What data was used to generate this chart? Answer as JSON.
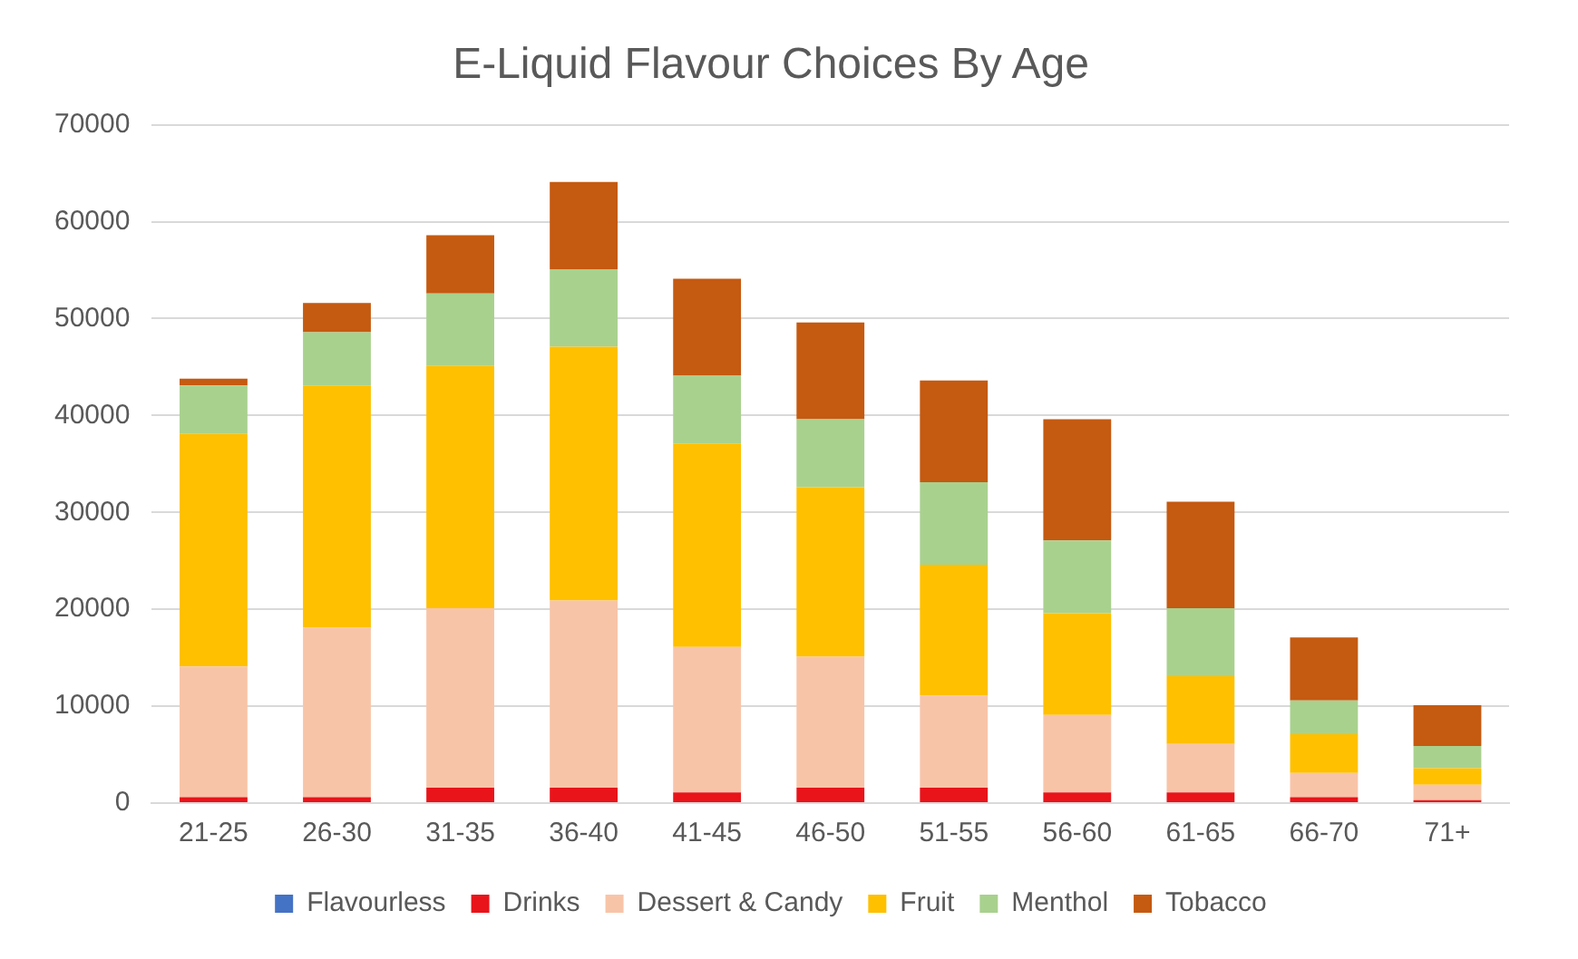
{
  "chart_data": {
    "type": "bar",
    "stacked": true,
    "title": "E-Liquid Flavour Choices By Age",
    "categories": [
      "21-25",
      "26-30",
      "31-35",
      "36-40",
      "41-45",
      "46-50",
      "51-55",
      "56-60",
      "61-65",
      "66-70",
      "71+"
    ],
    "series": [
      {
        "name": "Flavourless",
        "color": "#4472c4",
        "values": [
          100,
          100,
          100,
          100,
          100,
          100,
          100,
          100,
          100,
          100,
          100
        ]
      },
      {
        "name": "Drinks",
        "color": "#e8141a",
        "values": [
          500,
          500,
          1500,
          1500,
          1000,
          1500,
          1500,
          1000,
          1000,
          500,
          200
        ]
      },
      {
        "name": "Dessert & Candy",
        "color": "#f8c4a8",
        "values": [
          13500,
          17500,
          18500,
          19300,
          15000,
          13500,
          9500,
          8000,
          5000,
          2500,
          1600
        ]
      },
      {
        "name": "Fruit",
        "color": "#ffc000",
        "values": [
          24000,
          25000,
          25000,
          26200,
          21000,
          17500,
          13500,
          10500,
          7000,
          4000,
          1700
        ]
      },
      {
        "name": "Menthol",
        "color": "#a9d18e",
        "values": [
          5000,
          5500,
          7500,
          8000,
          7000,
          7000,
          8500,
          7500,
          7000,
          3500,
          2300
        ]
      },
      {
        "name": "Tobacco",
        "color": "#c55a11",
        "values": [
          700,
          3000,
          6000,
          9000,
          10000,
          10000,
          10500,
          12500,
          11000,
          6500,
          4200
        ]
      }
    ],
    "ylim": [
      0,
      70000
    ],
    "yticks": [
      0,
      10000,
      20000,
      30000,
      40000,
      50000,
      60000,
      70000
    ],
    "grid": "y",
    "legend": "bottom"
  }
}
